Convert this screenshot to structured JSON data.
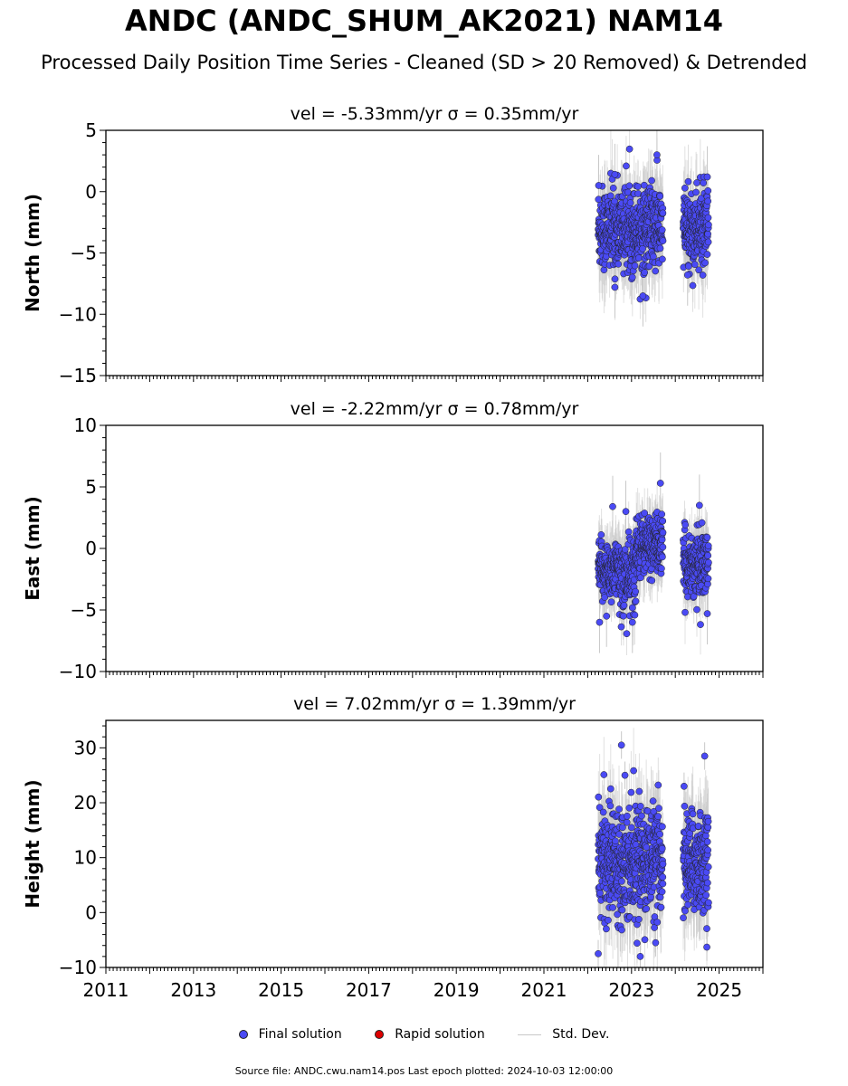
{
  "title": "ANDC (ANDC_SHUM_AK2021) NAM14",
  "subtitle": "Processed Daily Position Time Series - Cleaned (SD > 20 Removed) & Detrended",
  "legend": {
    "final_label": "Final solution",
    "rapid_label": "Rapid solution",
    "std_label": "Std. Dev.",
    "final_color": "#4a4af4",
    "rapid_color": "#dd0000",
    "std_color": "#c8c8c8"
  },
  "source": "Source file: ANDC.cwu.nam14.pos  Last epoch plotted: 2024-10-03 12:00:00",
  "chart_data": [
    {
      "type": "scatter",
      "title": "vel = -5.33mm/yr   σ = 0.35mm/yr",
      "ylabel": "North (mm)",
      "xlim": [
        2011,
        2026
      ],
      "ylim": [
        -15,
        5
      ],
      "yticks": [
        5,
        0,
        -5,
        -10,
        -15
      ],
      "xticks": [
        2011,
        2013,
        2015,
        2017,
        2019,
        2021,
        2023,
        2025
      ],
      "grid": false,
      "segments": [
        {
          "x_start": 2022.24,
          "x_end": 2023.72,
          "mean": -3.0,
          "spread": 1.7,
          "err": 2.4
        },
        {
          "x_start": 2024.18,
          "x_end": 2024.76,
          "mean": -3.1,
          "spread": 1.6,
          "err": 2.4
        }
      ],
      "notable_points": [
        {
          "x": 2023.58,
          "y": 3.0
        },
        {
          "x": 2022.62,
          "y": 1.4
        },
        {
          "x": 2024.73,
          "y": 1.2
        },
        {
          "x": 2022.25,
          "y": 0.5
        },
        {
          "x": 2023.46,
          "y": 0.9
        },
        {
          "x": 2022.62,
          "y": -7.8
        },
        {
          "x": 2023.26,
          "y": -8.5
        },
        {
          "x": 2024.28,
          "y": -6.8
        }
      ]
    },
    {
      "type": "scatter",
      "title": "vel = -2.22mm/yr   σ = 0.78mm/yr",
      "ylabel": "East (mm)",
      "xlim": [
        2011,
        2026
      ],
      "ylim": [
        -10,
        10
      ],
      "yticks": [
        10,
        5,
        0,
        -5,
        -10
      ],
      "xticks": [
        2011,
        2013,
        2015,
        2017,
        2019,
        2021,
        2023,
        2025
      ],
      "grid": false,
      "segments": [
        {
          "x_start": 2022.24,
          "x_end": 2022.72,
          "mean": -1.8,
          "spread": 1.2,
          "err": 1.8
        },
        {
          "x_start": 2022.72,
          "x_end": 2023.1,
          "mean": -2.4,
          "spread": 1.6,
          "err": 1.8
        },
        {
          "x_start": 2023.1,
          "x_end": 2023.72,
          "mean": 0.3,
          "spread": 1.2,
          "err": 1.8
        },
        {
          "x_start": 2024.18,
          "x_end": 2024.76,
          "mean": -1.3,
          "spread": 1.3,
          "err": 1.8
        }
      ],
      "notable_points": [
        {
          "x": 2023.66,
          "y": 5.3
        },
        {
          "x": 2022.57,
          "y": 3.4
        },
        {
          "x": 2024.55,
          "y": 3.5
        },
        {
          "x": 2022.87,
          "y": 3.0
        },
        {
          "x": 2022.27,
          "y": -6.0
        },
        {
          "x": 2023.02,
          "y": -6.0
        },
        {
          "x": 2022.43,
          "y": -5.5
        },
        {
          "x": 2024.73,
          "y": -5.3
        }
      ]
    },
    {
      "type": "scatter",
      "title": "vel = 7.02mm/yr   σ = 1.39mm/yr",
      "ylabel": "Height (mm)",
      "xlim": [
        2011,
        2026
      ],
      "ylim": [
        -10,
        35
      ],
      "yticks": [
        30,
        20,
        10,
        0,
        -10
      ],
      "xticks": [
        2011,
        2013,
        2015,
        2017,
        2019,
        2021,
        2023,
        2025
      ],
      "grid": false,
      "segments": [
        {
          "x_start": 2022.24,
          "x_end": 2023.72,
          "mean": 9.5,
          "spread": 4.8,
          "err": 6.5
        },
        {
          "x_start": 2024.18,
          "x_end": 2024.76,
          "mean": 9.0,
          "spread": 4.5,
          "err": 6.5
        }
      ],
      "notable_points": [
        {
          "x": 2022.77,
          "y": 30.5
        },
        {
          "x": 2024.67,
          "y": 28.5
        },
        {
          "x": 2022.85,
          "y": 25.0
        },
        {
          "x": 2024.2,
          "y": 23.0
        },
        {
          "x": 2022.24,
          "y": -7.5
        },
        {
          "x": 2023.2,
          "y": -8.0
        },
        {
          "x": 2024.72,
          "y": -6.3
        },
        {
          "x": 2023.55,
          "y": -5.5
        }
      ]
    }
  ]
}
